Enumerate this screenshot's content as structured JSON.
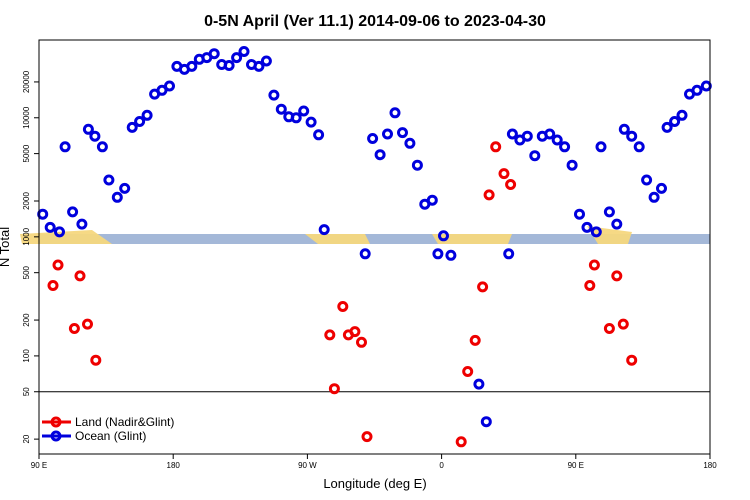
{
  "chart_data": {
    "type": "scatter",
    "title": "0-5N April (Ver 11.1)   2014-09-06 to 2023-04-30",
    "xlabel": "Longitude (deg E)",
    "ylabel": "N Total",
    "y_scale": "log",
    "xlim": [
      0,
      360
    ],
    "ylim": [
      15,
      45000
    ],
    "x_ticks": [
      {
        "pos": 0,
        "label": "90 E"
      },
      {
        "pos": 72,
        "label": "180"
      },
      {
        "pos": 144,
        "label": "90 W"
      },
      {
        "pos": 216,
        "label": "0"
      },
      {
        "pos": 288,
        "label": "90 E"
      },
      {
        "pos": 360,
        "label": "180"
      }
    ],
    "y_ticks": [
      20,
      50,
      100,
      200,
      500,
      1000,
      2000,
      5000,
      10000,
      20000
    ],
    "reference_line": 50,
    "colors": {
      "land": "#ee0000",
      "ocean": "#0000dd",
      "band": "#a4b8d8",
      "sand": "#f5d77e"
    },
    "legend": {
      "position": "bottom-left",
      "entries": [
        "Land (Nadir&Glint)",
        "Ocean (Glint)"
      ]
    },
    "series": [
      {
        "name": "Land (Nadir&Glint)",
        "points": [
          [
            7.5,
            390
          ],
          [
            10.2,
            580
          ],
          [
            19,
            170
          ],
          [
            22,
            470
          ],
          [
            26,
            185
          ],
          [
            30.5,
            92
          ],
          [
            156,
            150
          ],
          [
            158.5,
            53
          ],
          [
            163,
            260
          ],
          [
            166,
            150
          ],
          [
            169.5,
            160
          ],
          [
            173,
            130
          ],
          [
            176,
            21
          ],
          [
            226.5,
            19
          ],
          [
            230,
            74
          ],
          [
            234,
            135
          ],
          [
            238,
            380
          ],
          [
            241.5,
            2250
          ],
          [
            245,
            5700
          ],
          [
            249.5,
            3400
          ],
          [
            253,
            2750
          ],
          [
            295.5,
            390
          ],
          [
            298,
            580
          ],
          [
            306,
            170
          ],
          [
            310,
            470
          ],
          [
            313.5,
            185
          ],
          [
            318,
            92
          ]
        ]
      },
      {
        "name": "Ocean (Glint)",
        "points": [
          [
            2,
            1550
          ],
          [
            6,
            1200
          ],
          [
            11,
            1100
          ],
          [
            14,
            5700
          ],
          [
            18,
            1620
          ],
          [
            23,
            1280
          ],
          [
            26.5,
            8000
          ],
          [
            30,
            7000
          ],
          [
            34,
            5700
          ],
          [
            37.5,
            3000
          ],
          [
            42,
            2150
          ],
          [
            46,
            2550
          ],
          [
            50,
            8300
          ],
          [
            54,
            9300
          ],
          [
            58,
            10500
          ],
          [
            62,
            15800
          ],
          [
            66,
            17000
          ],
          [
            70,
            18500
          ],
          [
            74,
            27000
          ],
          [
            78,
            25500
          ],
          [
            82,
            27000
          ],
          [
            86,
            31000
          ],
          [
            90,
            32000
          ],
          [
            94,
            34500
          ],
          [
            98,
            28000
          ],
          [
            102,
            27500
          ],
          [
            106,
            32000
          ],
          [
            110,
            36000
          ],
          [
            114,
            28000
          ],
          [
            118,
            27000
          ],
          [
            122,
            30000
          ],
          [
            126,
            15500
          ],
          [
            130,
            11800
          ],
          [
            134,
            10200
          ],
          [
            138,
            10000
          ],
          [
            142,
            11400
          ],
          [
            146,
            9200
          ],
          [
            150,
            7200
          ],
          [
            153,
            1150
          ],
          [
            175,
            720
          ],
          [
            179,
            6700
          ],
          [
            183,
            4900
          ],
          [
            187,
            7300
          ],
          [
            191,
            11000
          ],
          [
            195,
            7500
          ],
          [
            199,
            6100
          ],
          [
            203,
            4000
          ],
          [
            207,
            1880
          ],
          [
            211,
            2030
          ],
          [
            214,
            720
          ],
          [
            217,
            1020
          ],
          [
            221,
            700
          ],
          [
            236,
            58
          ],
          [
            240,
            28
          ],
          [
            252,
            720
          ],
          [
            254,
            7300
          ],
          [
            258,
            6500
          ],
          [
            262,
            7000
          ],
          [
            266,
            4800
          ],
          [
            270,
            7000
          ],
          [
            274,
            7300
          ],
          [
            278,
            6500
          ],
          [
            282,
            5700
          ],
          [
            286,
            4000
          ],
          [
            290,
            1550
          ],
          [
            294,
            1200
          ],
          [
            299,
            1100
          ],
          [
            301.5,
            5700
          ],
          [
            306,
            1620
          ],
          [
            310,
            1280
          ],
          [
            314,
            8000
          ],
          [
            318,
            7000
          ],
          [
            322,
            5700
          ],
          [
            326,
            3000
          ],
          [
            330,
            2150
          ],
          [
            334,
            2550
          ],
          [
            337,
            8300
          ],
          [
            341,
            9300
          ],
          [
            345,
            10500
          ],
          [
            349,
            15800
          ],
          [
            353,
            17000
          ],
          [
            358,
            18500
          ]
        ]
      }
    ]
  }
}
